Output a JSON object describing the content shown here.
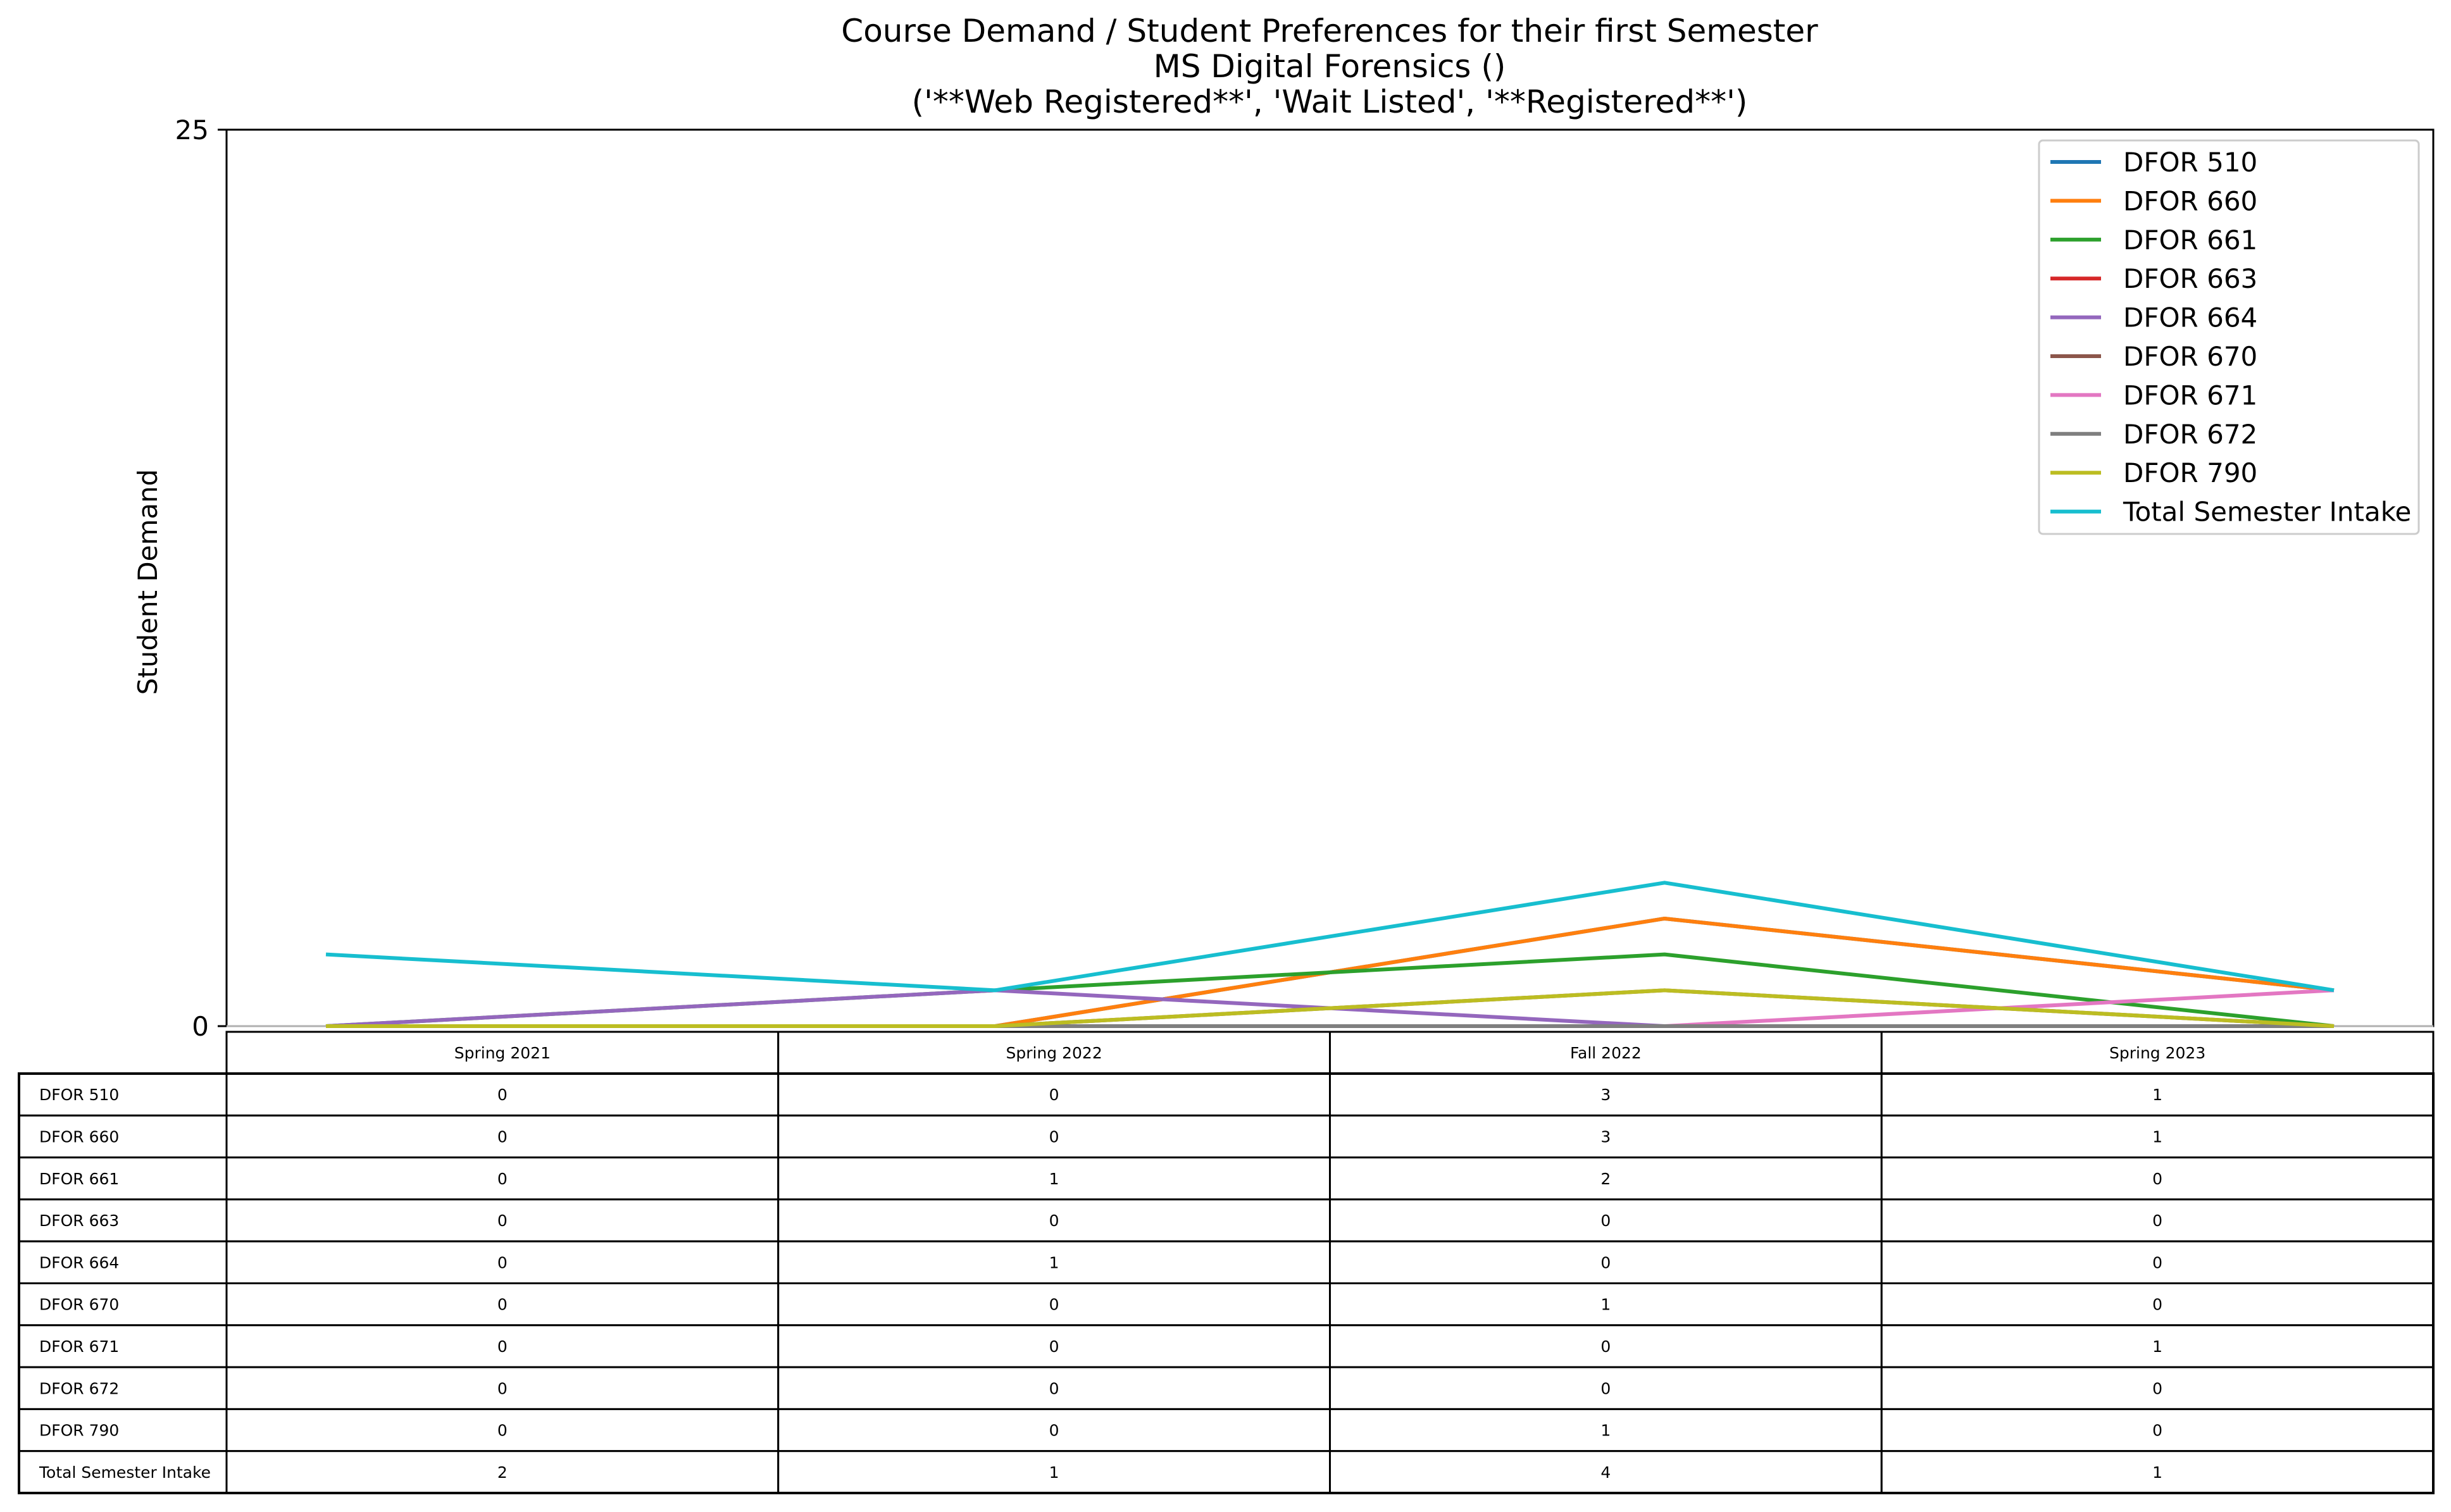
{
  "chart_data": {
    "type": "line",
    "title": "Course Demand / Student Preferences for their first Semester",
    "subtitle": "MS Digital Forensics ()",
    "subtitle2": "('**Web Registered**', 'Wait Listed', '**Registered**')",
    "xlabel": "",
    "ylabel": "Student Demand",
    "ylim": [
      0,
      25
    ],
    "yticks": [
      "0",
      "25"
    ],
    "categories": [
      "Spring 2021",
      "Spring 2022",
      "Fall 2022",
      "Spring 2023"
    ],
    "legend_position": "top-right",
    "grid": false,
    "series": [
      {
        "name": "DFOR 510",
        "color": "#1f77b4",
        "values": [
          0,
          0,
          3,
          1
        ]
      },
      {
        "name": "DFOR 660",
        "color": "#ff7f0e",
        "values": [
          0,
          0,
          3,
          1
        ]
      },
      {
        "name": "DFOR 661",
        "color": "#2ca02c",
        "values": [
          0,
          1,
          2,
          0
        ]
      },
      {
        "name": "DFOR 663",
        "color": "#d62728",
        "values": [
          0,
          0,
          0,
          0
        ]
      },
      {
        "name": "DFOR 664",
        "color": "#9467bd",
        "values": [
          0,
          1,
          0,
          0
        ]
      },
      {
        "name": "DFOR 670",
        "color": "#8c564b",
        "values": [
          0,
          0,
          1,
          0
        ]
      },
      {
        "name": "DFOR 671",
        "color": "#e377c2",
        "values": [
          0,
          0,
          0,
          1
        ]
      },
      {
        "name": "DFOR 672",
        "color": "#7f7f7f",
        "values": [
          0,
          0,
          0,
          0
        ]
      },
      {
        "name": "DFOR 790",
        "color": "#bcbd22",
        "values": [
          0,
          0,
          1,
          0
        ]
      },
      {
        "name": "Total Semester Intake",
        "color": "#17becf",
        "values": [
          2,
          1,
          4,
          1
        ]
      }
    ]
  }
}
